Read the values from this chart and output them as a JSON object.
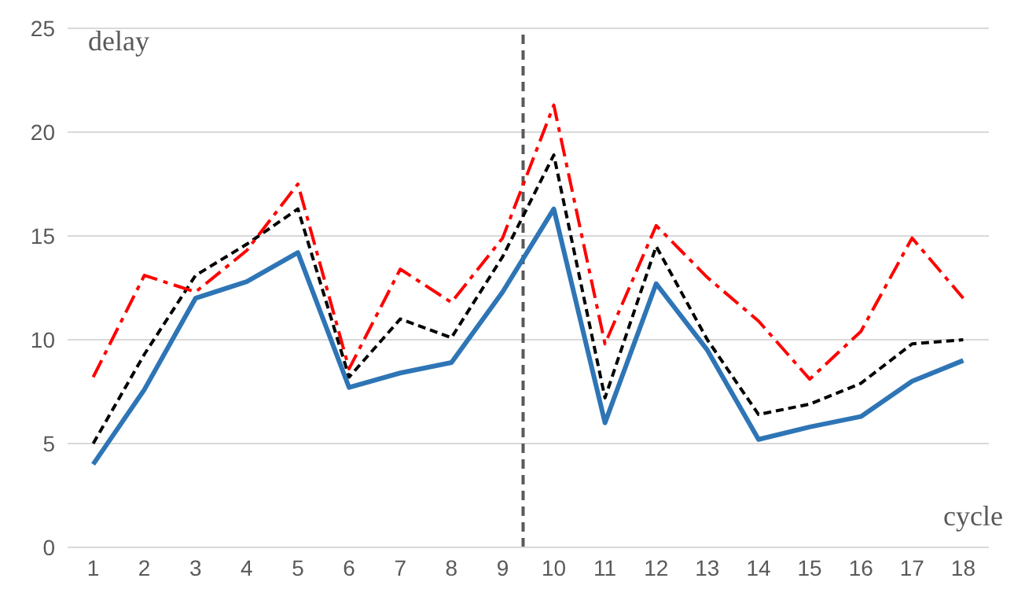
{
  "chart_data": {
    "type": "line",
    "xlabel": "cycle",
    "ylabel": "delay",
    "x": [
      1,
      2,
      3,
      4,
      5,
      6,
      7,
      8,
      9,
      10,
      11,
      12,
      13,
      14,
      15,
      16,
      17,
      18
    ],
    "series": [
      {
        "color": "#2e75b6",
        "line_style": "solid",
        "values": [
          4.0,
          7.6,
          12.0,
          12.8,
          14.2,
          7.7,
          8.4,
          8.9,
          12.3,
          16.3,
          6.0,
          12.7,
          9.5,
          5.2,
          5.8,
          6.3,
          8.0,
          9.0
        ]
      },
      {
        "color": "#000000",
        "line_style": "dotted",
        "values": [
          5.0,
          9.3,
          13.1,
          14.6,
          16.3,
          8.2,
          11.0,
          10.1,
          14.0,
          18.9,
          7.2,
          14.5,
          10.0,
          6.4,
          6.9,
          7.9,
          9.8,
          10.0
        ]
      },
      {
        "color": "#ff0000",
        "line_style": "dashed",
        "values": [
          8.2,
          13.1,
          12.3,
          14.3,
          17.5,
          8.6,
          13.4,
          11.8,
          14.9,
          21.3,
          9.8,
          15.5,
          13.0,
          10.9,
          8.1,
          10.4,
          14.9,
          12.0
        ]
      }
    ],
    "xlim": [
      0.5,
      18.5
    ],
    "xticks": [
      1,
      2,
      3,
      4,
      5,
      6,
      7,
      8,
      9,
      10,
      11,
      12,
      13,
      14,
      15,
      16,
      17,
      18
    ],
    "ylim": [
      0,
      25
    ],
    "yticks": [
      0,
      5,
      10,
      15,
      20,
      25
    ],
    "grid": "y",
    "marker": "none",
    "ref_lines": [
      {
        "axis": "x",
        "value": 9.4,
        "color": "#595959",
        "line_style": "dashed"
      }
    ]
  }
}
